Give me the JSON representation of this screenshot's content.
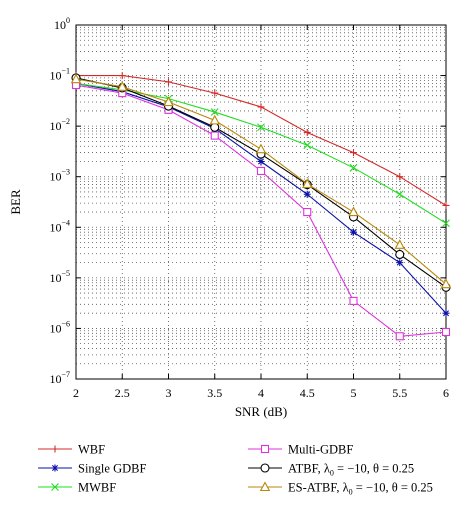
{
  "chart_data": {
    "type": "line",
    "xlabel": "SNR (dB)",
    "ylabel": "BER",
    "x": [
      2,
      2.5,
      3,
      3.5,
      4,
      4.5,
      5,
      5.5,
      6
    ],
    "x_tick_labels": [
      "2",
      "2.5",
      "3",
      "3.5",
      "4",
      "4.5",
      "5",
      "5.5",
      "6"
    ],
    "xlim": [
      2,
      6
    ],
    "ylim": [
      1e-07,
      1
    ],
    "y_scale": "log",
    "y_tick_labels": [
      {
        "base": "10",
        "exp": "0"
      },
      {
        "base": "10",
        "exp": "−1"
      },
      {
        "base": "10",
        "exp": "−2"
      },
      {
        "base": "10",
        "exp": "−3"
      },
      {
        "base": "10",
        "exp": "−4"
      },
      {
        "base": "10",
        "exp": "−5"
      },
      {
        "base": "10",
        "exp": "−6"
      },
      {
        "base": "10",
        "exp": "−7"
      }
    ],
    "grid": true,
    "legend_position": "bottom",
    "series": [
      {
        "name": "WBF",
        "color": "#d42a2a",
        "marker": "plus",
        "values": [
          0.1,
          0.1,
          0.075,
          0.045,
          0.024,
          0.0075,
          0.003,
          0.001,
          0.00027
        ]
      },
      {
        "name": "Single GDBF",
        "color": "#0a10a8",
        "marker": "star",
        "values": [
          0.07,
          0.048,
          0.024,
          0.009,
          0.002,
          0.00045,
          8e-05,
          2e-05,
          2e-06
        ]
      },
      {
        "name": "MWBF",
        "color": "#22dd22",
        "marker": "x",
        "values": [
          0.07,
          0.052,
          0.035,
          0.019,
          0.0095,
          0.0042,
          0.0015,
          0.00045,
          0.00012
        ]
      },
      {
        "name": "Multi-GDBF",
        "color": "#dd33dd",
        "marker": "square",
        "values": [
          0.065,
          0.045,
          0.021,
          0.0065,
          0.0013,
          0.0002,
          3.5e-06,
          7e-07,
          8.5e-07
        ]
      },
      {
        "name": "ATBF, λ0 = −10, θ = 0.25",
        "color": "#000000",
        "marker": "circle",
        "values": [
          0.09,
          0.057,
          0.025,
          0.0095,
          0.0028,
          0.0007,
          0.00016,
          2.9e-05,
          6.5e-06
        ]
      },
      {
        "name": "ES-ATBF, λ0 = −10, θ = 0.25",
        "color": "#b8860b",
        "marker": "triangle",
        "values": [
          0.085,
          0.06,
          0.03,
          0.013,
          0.0035,
          0.00072,
          0.0002,
          4.5e-05,
          7.5e-06
        ]
      }
    ]
  },
  "legend": [
    {
      "prefix": "WBF",
      "sub": "",
      "suffix": ""
    },
    {
      "prefix": "Single GDBF",
      "sub": "",
      "suffix": ""
    },
    {
      "prefix": "MWBF",
      "sub": "",
      "suffix": ""
    },
    {
      "prefix": "Multi-GDBF",
      "sub": "",
      "suffix": ""
    },
    {
      "prefix": "ATBF, λ",
      "sub": "0",
      "suffix": " = −10, θ = 0.25"
    },
    {
      "prefix": "ES-ATBF, λ",
      "sub": "0",
      "suffix": " = −10, θ = 0.25"
    }
  ]
}
